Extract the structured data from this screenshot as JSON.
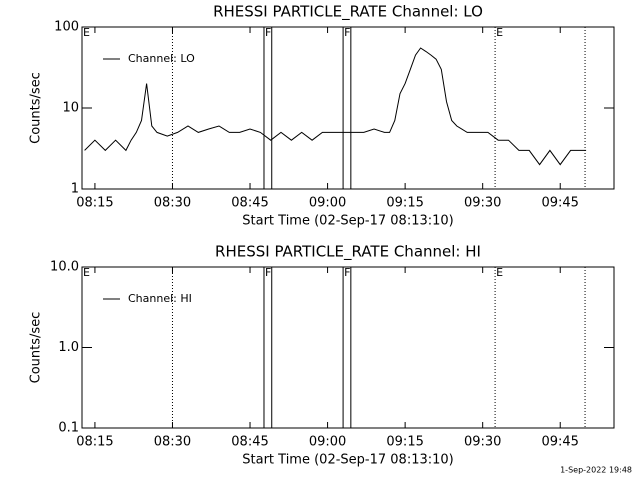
{
  "chart_data": [
    {
      "type": "line",
      "title": "RHESSI PARTICLE_RATE Channel: LO",
      "x_label": "Start Time (02-Sep-17 08:13:10)",
      "y_label": "Counts/sec",
      "xlim": [
        12.5,
        115.4
      ],
      "xticks": [
        {
          "value": 15,
          "label": "08:15"
        },
        {
          "value": 30,
          "label": "08:30"
        },
        {
          "value": 45,
          "label": "08:45"
        },
        {
          "value": 60,
          "label": "09:00"
        },
        {
          "value": 75,
          "label": "09:15"
        },
        {
          "value": 90,
          "label": "09:30"
        },
        {
          "value": 105,
          "label": "09:45"
        }
      ],
      "ylim": [
        1,
        100
      ],
      "yticks": [
        1,
        10,
        100
      ],
      "log_y": true,
      "series": [
        {
          "name": "Channel: LO",
          "color": "#000000",
          "x": [
            13,
            15,
            17,
            19,
            21,
            22,
            23,
            24,
            25,
            26,
            27,
            29,
            31,
            33,
            35,
            37,
            39,
            41,
            43,
            45,
            47,
            49,
            51,
            53,
            55,
            57,
            59,
            61,
            63,
            65,
            67,
            69,
            71,
            72,
            73,
            74,
            75,
            76,
            77,
            78,
            79,
            80,
            81,
            82,
            83,
            84,
            85,
            87,
            89,
            91,
            93,
            95,
            97,
            99,
            101,
            103,
            105,
            107,
            109,
            110
          ],
          "values": [
            3,
            4,
            3,
            4,
            3,
            4,
            5,
            7,
            20,
            6,
            5,
            4.5,
            5,
            6,
            5,
            5.5,
            6,
            5,
            5,
            5.5,
            5,
            4,
            5,
            4,
            5,
            4,
            5,
            5,
            5,
            5,
            5,
            5.5,
            5,
            5,
            7,
            15,
            20,
            30,
            45,
            55,
            50,
            45,
            40,
            30,
            12,
            7,
            6,
            5,
            5,
            5,
            4,
            4,
            3,
            3,
            2,
            3,
            2,
            3,
            3,
            3
          ]
        }
      ],
      "markers": [
        {
          "x": 12.5,
          "label": "E",
          "style": "dotted"
        },
        {
          "x": 30,
          "style": "dotted"
        },
        {
          "x": 47.7,
          "label": "F",
          "style": "solid"
        },
        {
          "x": 49.2,
          "style": "solid"
        },
        {
          "x": 63,
          "label": "F",
          "style": "solid"
        },
        {
          "x": 64.5,
          "style": "solid"
        },
        {
          "x": 92.4,
          "label": "E",
          "style": "dotted"
        },
        {
          "x": 109.8,
          "style": "dotted"
        }
      ]
    },
    {
      "type": "line",
      "title": "RHESSI PARTICLE_RATE Channel: HI",
      "x_label": "Start Time (02-Sep-17 08:13:10)",
      "y_label": "Counts/sec",
      "xlim": [
        12.5,
        115.4
      ],
      "xticks": [
        {
          "value": 15,
          "label": "08:15"
        },
        {
          "value": 30,
          "label": "08:30"
        },
        {
          "value": 45,
          "label": "08:45"
        },
        {
          "value": 60,
          "label": "09:00"
        },
        {
          "value": 75,
          "label": "09:15"
        },
        {
          "value": 90,
          "label": "09:30"
        },
        {
          "value": 105,
          "label": "09:45"
        }
      ],
      "ylim": [
        0.1,
        10
      ],
      "yticks": [
        {
          "value": 0.1,
          "label": "0.1"
        },
        {
          "value": 1,
          "label": "1.0"
        },
        {
          "value": 10,
          "label": "10.0"
        }
      ],
      "log_y": true,
      "series": [
        {
          "name": "Channel: HI",
          "color": "#000000",
          "x": [],
          "values": []
        }
      ],
      "markers": [
        {
          "x": 12.5,
          "label": "E",
          "style": "dotted"
        },
        {
          "x": 30,
          "style": "dotted"
        },
        {
          "x": 47.7,
          "label": "F",
          "style": "solid"
        },
        {
          "x": 49.2,
          "style": "solid"
        },
        {
          "x": 63,
          "label": "F",
          "style": "solid"
        },
        {
          "x": 64.5,
          "style": "solid"
        },
        {
          "x": 92.4,
          "label": "E",
          "style": "dotted"
        },
        {
          "x": 109.8,
          "style": "dotted"
        }
      ]
    }
  ],
  "footer": "1-Sep-2022 19:48"
}
